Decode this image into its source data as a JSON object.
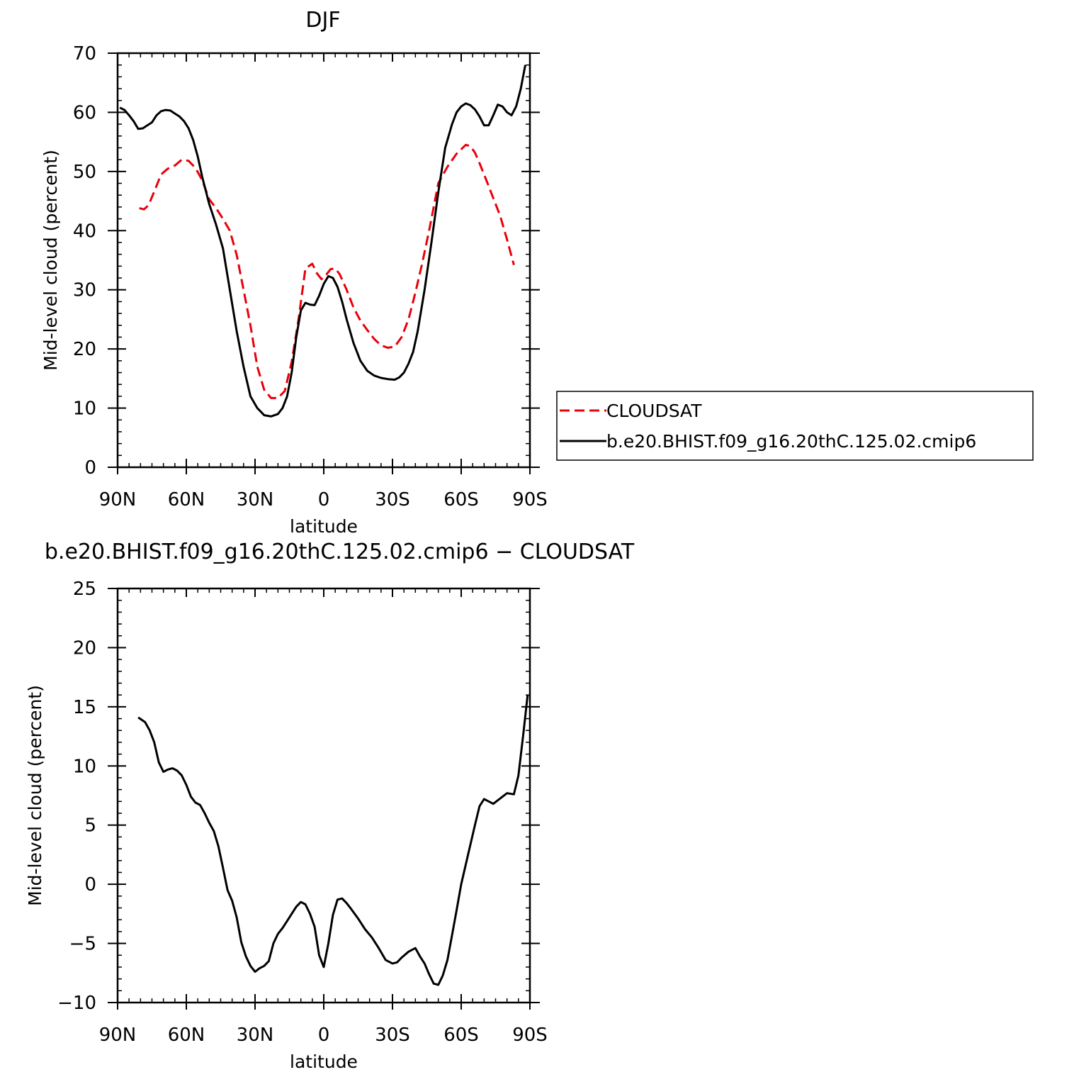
{
  "chart_data": [
    {
      "type": "line",
      "title": "DJF",
      "xlabel": "latitude",
      "ylabel": "Mid-level cloud (percent)",
      "xlim": [
        90,
        -90
      ],
      "ylim": [
        0,
        70
      ],
      "x_ticks": [
        {
          "value": 90,
          "label": "90N"
        },
        {
          "value": 60,
          "label": "60N"
        },
        {
          "value": 30,
          "label": "30N"
        },
        {
          "value": 0,
          "label": "0"
        },
        {
          "value": -30,
          "label": "30S"
        },
        {
          "value": -60,
          "label": "60S"
        },
        {
          "value": -90,
          "label": "90S"
        }
      ],
      "y_ticks": [
        {
          "value": 0,
          "label": "0"
        },
        {
          "value": 10,
          "label": "10"
        },
        {
          "value": 20,
          "label": "20"
        },
        {
          "value": 30,
          "label": "30"
        },
        {
          "value": 40,
          "label": "40"
        },
        {
          "value": 50,
          "label": "50"
        },
        {
          "value": 60,
          "label": "60"
        },
        {
          "value": 70,
          "label": "70"
        }
      ],
      "grid": false,
      "legend_position": "right",
      "series": [
        {
          "name": "CLOUDSAT",
          "color": "#e8000b",
          "dash": "dashed",
          "x": [
            80.5,
            78.5,
            76.5,
            74,
            71,
            68,
            65,
            62,
            59,
            56,
            53,
            50,
            47,
            44,
            41,
            38,
            35,
            32,
            29,
            26,
            23,
            20,
            17,
            14,
            11,
            8,
            5,
            3,
            1,
            -1,
            -3,
            -5,
            -7,
            -10,
            -13,
            -16,
            -19,
            -22,
            -25,
            -28,
            -31,
            -34,
            -37,
            -40,
            -43,
            -46,
            -50,
            -54,
            -58,
            -62,
            -64,
            -66,
            -68,
            -71,
            -74,
            -77,
            -80,
            -83
          ],
          "values": [
            43.8,
            43.6,
            44.3,
            46.6,
            49.5,
            50.5,
            51.0,
            52.0,
            51.8,
            50.6,
            48.5,
            45.3,
            43.8,
            42.0,
            40.0,
            35.9,
            30.0,
            24.0,
            17.0,
            13.1,
            11.7,
            11.7,
            12.9,
            17.8,
            25.0,
            33.6,
            34.4,
            32.8,
            31.8,
            32.5,
            33.5,
            33.6,
            32.6,
            30.0,
            27.0,
            24.8,
            23.2,
            21.7,
            20.6,
            20.2,
            20.4,
            22.0,
            25.0,
            29.5,
            34.5,
            40.0,
            48.0,
            50.8,
            53.0,
            54.5,
            54.3,
            53.2,
            51.4,
            48.5,
            45.5,
            42.5,
            38.5,
            34.2
          ]
        },
        {
          "name": "b.e20.BHIST.f09_g16.20thC.125.02.cmip6",
          "color": "#000000",
          "dash": "solid",
          "x": [
            89,
            87,
            85,
            83,
            81,
            79,
            77,
            75,
            73,
            71,
            69,
            67,
            65,
            63,
            61,
            59,
            57,
            55,
            53,
            50,
            47,
            44,
            41,
            38,
            35,
            32,
            29,
            26,
            23,
            20,
            18,
            16,
            14,
            12,
            10,
            8,
            6,
            4,
            2,
            0,
            -2,
            -4,
            -6,
            -8,
            -10,
            -13,
            -16,
            -19,
            -22,
            -25,
            -28,
            -31,
            -33,
            -35,
            -37,
            -39,
            -41,
            -44,
            -47,
            -50,
            -53,
            -56,
            -58,
            -60,
            -62,
            -64,
            -66,
            -68,
            -70,
            -72,
            -74,
            -76,
            -78,
            -80,
            -82,
            -84,
            -86,
            -88
          ],
          "values": [
            60.8,
            60.4,
            59.5,
            58.5,
            57.2,
            57.3,
            57.8,
            58.3,
            59.5,
            60.2,
            60.4,
            60.3,
            59.8,
            59.3,
            58.5,
            57.3,
            55.3,
            52.5,
            49.0,
            44.5,
            41.0,
            37.0,
            30.0,
            23.0,
            17.0,
            12.0,
            10.0,
            8.8,
            8.6,
            9.0,
            10.0,
            12.0,
            16.0,
            22.0,
            26.5,
            27.8,
            27.5,
            27.4,
            29.0,
            31.0,
            32.3,
            32.0,
            30.5,
            28.0,
            25.0,
            21.0,
            18.0,
            16.3,
            15.5,
            15.1,
            14.9,
            14.8,
            15.2,
            16.0,
            17.5,
            19.5,
            23.0,
            30.0,
            38.0,
            46.5,
            54.0,
            58.0,
            60.0,
            61.0,
            61.5,
            61.2,
            60.5,
            59.3,
            57.8,
            57.8,
            59.5,
            61.3,
            61.0,
            60.0,
            59.5,
            61.0,
            64.0,
            68.0
          ]
        }
      ]
    },
    {
      "type": "line",
      "title": "b.e20.BHIST.f09_g16.20thC.125.02.cmip6 − CLOUDSAT",
      "xlabel": "latitude",
      "ylabel": "Mid-level cloud (percent)",
      "xlim": [
        90,
        -90
      ],
      "ylim": [
        -10,
        25
      ],
      "x_ticks": [
        {
          "value": 90,
          "label": "90N"
        },
        {
          "value": 60,
          "label": "60N"
        },
        {
          "value": 30,
          "label": "30N"
        },
        {
          "value": 0,
          "label": "0"
        },
        {
          "value": -30,
          "label": "30S"
        },
        {
          "value": -60,
          "label": "60S"
        },
        {
          "value": -90,
          "label": "90S"
        }
      ],
      "y_ticks": [
        {
          "value": -10,
          "label": "−10"
        },
        {
          "value": -5,
          "label": "−5"
        },
        {
          "value": 0,
          "label": "0"
        },
        {
          "value": 5,
          "label": "5"
        },
        {
          "value": 10,
          "label": "10"
        },
        {
          "value": 15,
          "label": "15"
        },
        {
          "value": 20,
          "label": "20"
        },
        {
          "value": 25,
          "label": "25"
        }
      ],
      "grid": false,
      "series": [
        {
          "color": "#000000",
          "dash": "solid",
          "x": [
            81,
            78,
            76,
            74,
            72,
            70,
            68,
            66,
            64,
            62,
            60,
            58,
            56,
            54,
            52,
            50,
            48,
            46,
            44,
            42,
            40,
            38,
            36,
            34,
            32,
            30,
            28,
            26,
            24,
            22,
            20,
            18,
            16,
            14,
            12,
            10,
            8,
            6,
            4,
            2,
            0,
            -2,
            -4,
            -6,
            -8,
            -10,
            -12,
            -15,
            -18,
            -21,
            -24,
            -27,
            -30,
            -32,
            -34,
            -37,
            -40,
            -42,
            -44,
            -46,
            -48,
            -50,
            -52,
            -54,
            -56,
            -58,
            -60,
            -63,
            -66,
            -68,
            -70,
            -72,
            -74,
            -76,
            -78,
            -80
          ],
          "values": [
            14.1,
            13.7,
            13.0,
            12.0,
            10.3,
            9.5,
            9.7,
            9.8,
            9.6,
            9.2,
            8.4,
            7.4,
            6.9,
            6.7,
            6.0,
            5.2,
            4.5,
            3.2,
            1.4,
            -0.5,
            -1.4,
            -2.8,
            -4.9,
            -6.1,
            -6.9,
            -7.4,
            -7.1,
            -6.9,
            -6.5,
            -5.0,
            -4.2,
            -3.7,
            -3.1,
            -2.5,
            -1.9,
            -1.5,
            -1.7,
            -2.5,
            -3.6,
            -6.0,
            -7.0,
            -5.0,
            -2.6,
            -1.3,
            -1.2,
            -1.6,
            -2.1,
            -2.9,
            -3.8,
            -4.5,
            -5.4,
            -6.4,
            -6.7,
            -6.6,
            -6.2,
            -5.7,
            -5.4,
            -6.1,
            -6.7,
            -7.6,
            -8.4,
            -8.5,
            -7.7,
            -6.4,
            -4.3,
            -2.2,
            0.0,
            2.5,
            5.0,
            6.6,
            7.2,
            7.0,
            6.8,
            7.1,
            7.4,
            7.7
          ],
          "x_extra": [
            -83,
            -85,
            -87,
            -89
          ],
          "values_extra": [
            7.6,
            9.2,
            12.5,
            16.0
          ]
        }
      ]
    }
  ],
  "legend": {
    "entries": [
      {
        "label": "CLOUDSAT",
        "color": "#e8000b",
        "dash": "dashed"
      },
      {
        "label": "b.e20.BHIST.f09_g16.20thC.125.02.cmip6",
        "color": "#000000",
        "dash": "solid"
      }
    ]
  }
}
